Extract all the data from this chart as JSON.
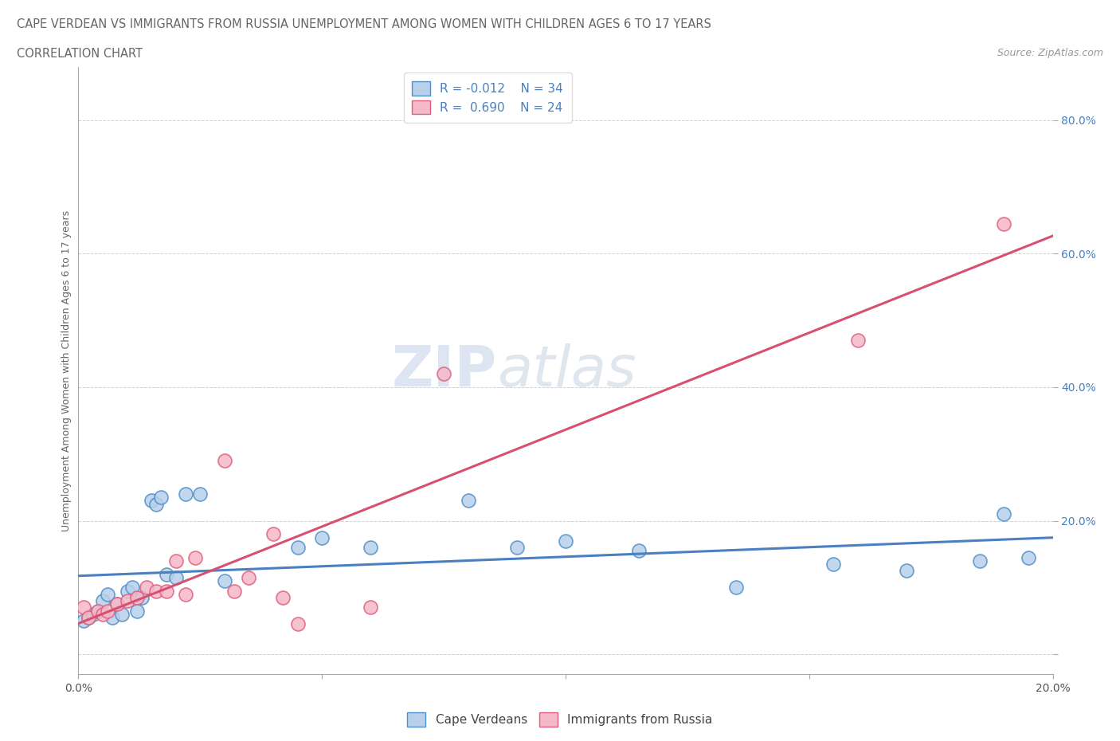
{
  "title_line1": "CAPE VERDEAN VS IMMIGRANTS FROM RUSSIA UNEMPLOYMENT AMONG WOMEN WITH CHILDREN AGES 6 TO 17 YEARS",
  "title_line2": "CORRELATION CHART",
  "source": "Source: ZipAtlas.com",
  "ylabel": "Unemployment Among Women with Children Ages 6 to 17 years",
  "xmin": 0.0,
  "xmax": 0.2,
  "ymin": -0.03,
  "ymax": 0.88,
  "legend_r1": "R = -0.012",
  "legend_n1": "N = 34",
  "legend_r2": "R =  0.690",
  "legend_n2": "N = 24",
  "color_blue_fill": "#b8d0ea",
  "color_pink_fill": "#f5b8c8",
  "color_blue_edge": "#5090c8",
  "color_pink_edge": "#e06080",
  "color_blue_line": "#4a80c0",
  "color_pink_line": "#d85070",
  "watermark_zip": "ZIP",
  "watermark_atlas": "atlas",
  "label1": "Cape Verdeans",
  "label2": "Immigrants from Russia",
  "blue_x": [
    0.001,
    0.002,
    0.003,
    0.004,
    0.005,
    0.006,
    0.007,
    0.008,
    0.009,
    0.01,
    0.011,
    0.012,
    0.013,
    0.015,
    0.016,
    0.017,
    0.018,
    0.02,
    0.022,
    0.025,
    0.03,
    0.045,
    0.05,
    0.06,
    0.08,
    0.09,
    0.1,
    0.115,
    0.135,
    0.155,
    0.17,
    0.185,
    0.19,
    0.195
  ],
  "blue_y": [
    0.05,
    0.055,
    0.06,
    0.065,
    0.08,
    0.09,
    0.055,
    0.075,
    0.06,
    0.095,
    0.1,
    0.065,
    0.085,
    0.23,
    0.225,
    0.235,
    0.12,
    0.115,
    0.24,
    0.24,
    0.11,
    0.16,
    0.175,
    0.16,
    0.23,
    0.16,
    0.17,
    0.155,
    0.1,
    0.135,
    0.125,
    0.14,
    0.21,
    0.145
  ],
  "pink_x": [
    0.001,
    0.002,
    0.004,
    0.005,
    0.006,
    0.008,
    0.01,
    0.012,
    0.014,
    0.016,
    0.018,
    0.02,
    0.022,
    0.024,
    0.03,
    0.032,
    0.035,
    0.04,
    0.042,
    0.045,
    0.06,
    0.075,
    0.16,
    0.19
  ],
  "pink_y": [
    0.07,
    0.055,
    0.065,
    0.06,
    0.065,
    0.075,
    0.08,
    0.085,
    0.1,
    0.095,
    0.095,
    0.14,
    0.09,
    0.145,
    0.29,
    0.095,
    0.115,
    0.18,
    0.085,
    0.045,
    0.07,
    0.42,
    0.47,
    0.645
  ]
}
